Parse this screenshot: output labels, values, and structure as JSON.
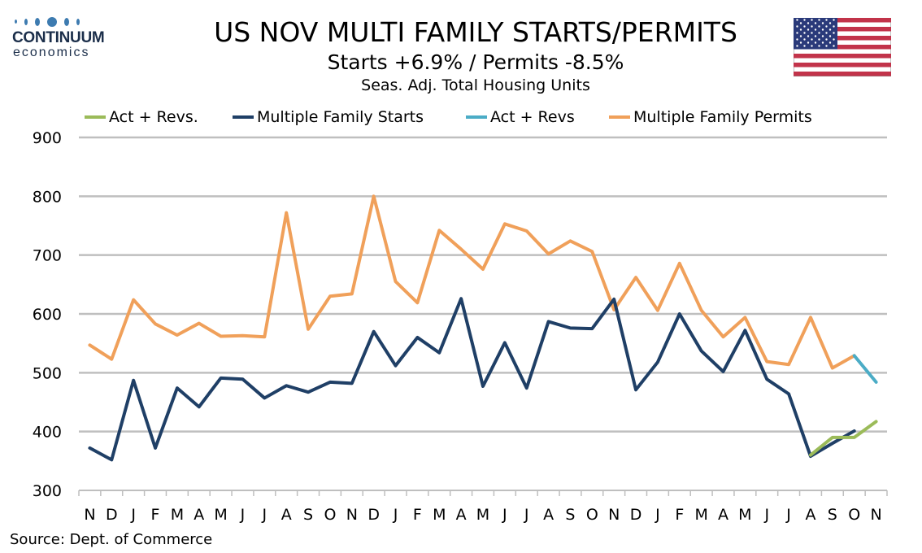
{
  "logo": {
    "brand": "CONTINUUM",
    "sub": "economics"
  },
  "title": "US NOV MULTI FAMILY STARTS/PERMITS",
  "subtitle": "Starts  +6.9% / Permits -8.5%",
  "subtitle2": "Seas. Adj. Total Housing Units",
  "source": "Source: Dept. of Commerce",
  "flag_icon": "us-flag-icon",
  "colors": {
    "starts": "#1f3f66",
    "starts_revs": "#9bbb59",
    "permits": "#f0a05a",
    "permits_revs": "#4bacc6",
    "grid": "#bfbfbf"
  },
  "chart_data": {
    "type": "line",
    "categories": [
      "N",
      "D",
      "J",
      "F",
      "M",
      "A",
      "M",
      "J",
      "J",
      "A",
      "S",
      "O",
      "N",
      "D",
      "J",
      "F",
      "M",
      "A",
      "M",
      "J",
      "J",
      "A",
      "S",
      "O",
      "N",
      "D",
      "J",
      "F",
      "M",
      "A",
      "M",
      "J",
      "J",
      "A",
      "S",
      "O",
      "N"
    ],
    "ylim": [
      300,
      900
    ],
    "yticks": [
      300,
      400,
      500,
      600,
      700,
      800,
      900
    ],
    "grid": true,
    "legend_position": "top",
    "series": [
      {
        "name": "Act + Revs.",
        "color": "#9bbb59",
        "values": [
          null,
          null,
          null,
          null,
          null,
          null,
          null,
          null,
          null,
          null,
          null,
          null,
          null,
          null,
          null,
          null,
          null,
          null,
          null,
          null,
          null,
          null,
          null,
          null,
          null,
          null,
          null,
          null,
          null,
          null,
          null,
          null,
          null,
          360,
          390,
          390,
          417
        ]
      },
      {
        "name": "Multiple Family Starts",
        "color": "#1f3f66",
        "values": [
          372,
          352,
          487,
          372,
          474,
          442,
          491,
          489,
          457,
          478,
          467,
          484,
          482,
          570,
          512,
          560,
          534,
          626,
          477,
          551,
          474,
          587,
          576,
          575,
          625,
          471,
          518,
          600,
          537,
          502,
          572,
          489,
          464,
          358,
          380,
          401,
          null
        ]
      },
      {
        "name": "Act + Revs",
        "color": "#4bacc6",
        "values": [
          null,
          null,
          null,
          null,
          null,
          null,
          null,
          null,
          null,
          null,
          null,
          null,
          null,
          null,
          null,
          null,
          null,
          null,
          null,
          null,
          null,
          null,
          null,
          null,
          null,
          null,
          null,
          null,
          null,
          null,
          null,
          null,
          null,
          null,
          null,
          529,
          484
        ]
      },
      {
        "name": "Multiple Family Permits",
        "color": "#f0a05a",
        "values": [
          547,
          523,
          624,
          583,
          564,
          584,
          562,
          563,
          561,
          772,
          574,
          630,
          634,
          800,
          655,
          619,
          742,
          710,
          676,
          753,
          741,
          702,
          724,
          706,
          607,
          662,
          606,
          686,
          606,
          561,
          594,
          519,
          514,
          594,
          508,
          529,
          null
        ]
      }
    ]
  }
}
